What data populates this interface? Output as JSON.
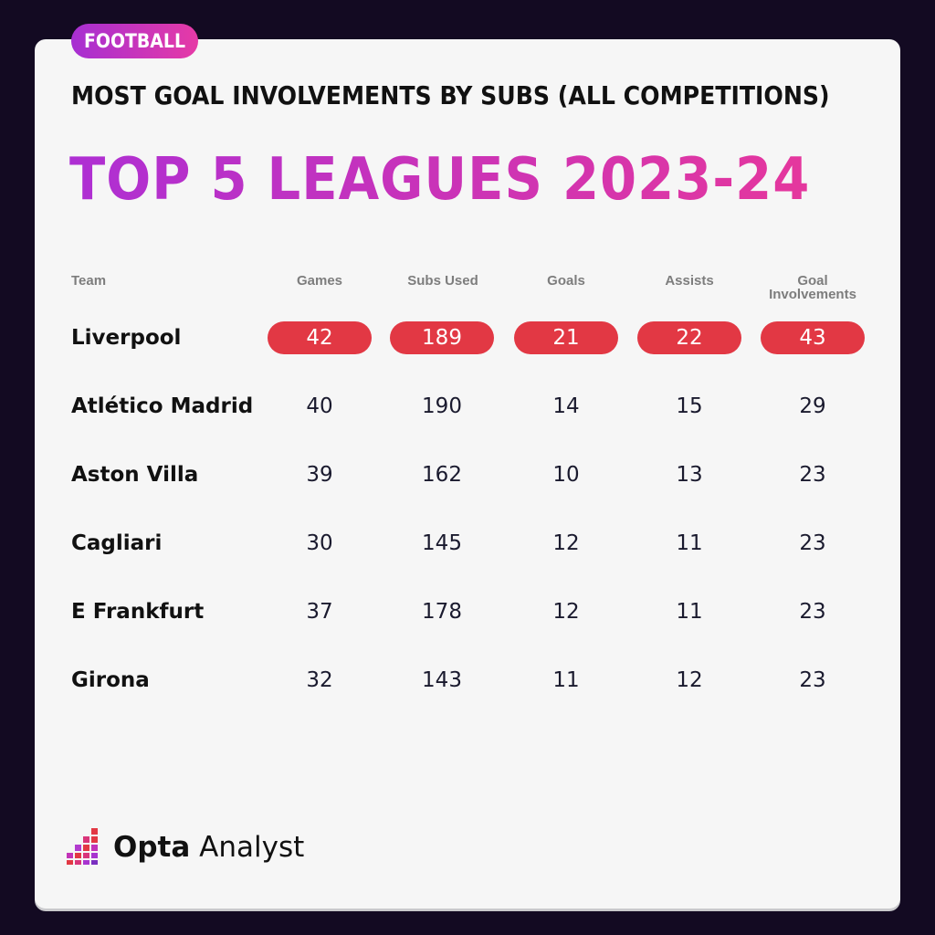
{
  "tag": "FOOTBALL",
  "subtitle": "MOST GOAL INVOLVEMENTS BY SUBS (ALL COMPETITIONS)",
  "title": "TOP 5 LEAGUES 2023-24",
  "brand": {
    "name_bold": "Opta",
    "name_regular": "Analyst"
  },
  "colors": {
    "highlight": "#e23844",
    "accent_start": "#ae2fd3",
    "accent_end": "#e5379d",
    "background": "#130a22"
  },
  "chart_data": {
    "type": "table",
    "columns": [
      "Team",
      "Games",
      "Subs Used",
      "Goals",
      "Assists",
      "Goal Involvements"
    ],
    "highlighted_row": 0,
    "rows": [
      {
        "team": "Liverpool",
        "values": [
          "42",
          "189",
          "21",
          "22",
          "43"
        ]
      },
      {
        "team": "Atlético Madrid",
        "values": [
          "40",
          "190",
          "14",
          "15",
          "29"
        ]
      },
      {
        "team": "Aston Villa",
        "values": [
          "39",
          "162",
          "10",
          "13",
          "23"
        ]
      },
      {
        "team": "Cagliari",
        "values": [
          "30",
          "145",
          "12",
          "11",
          "23"
        ]
      },
      {
        "team": "E Frankfurt",
        "values": [
          "37",
          "178",
          "12",
          "11",
          "23"
        ]
      },
      {
        "team": "Girona",
        "values": [
          "32",
          "143",
          "11",
          "12",
          "23"
        ]
      }
    ]
  }
}
